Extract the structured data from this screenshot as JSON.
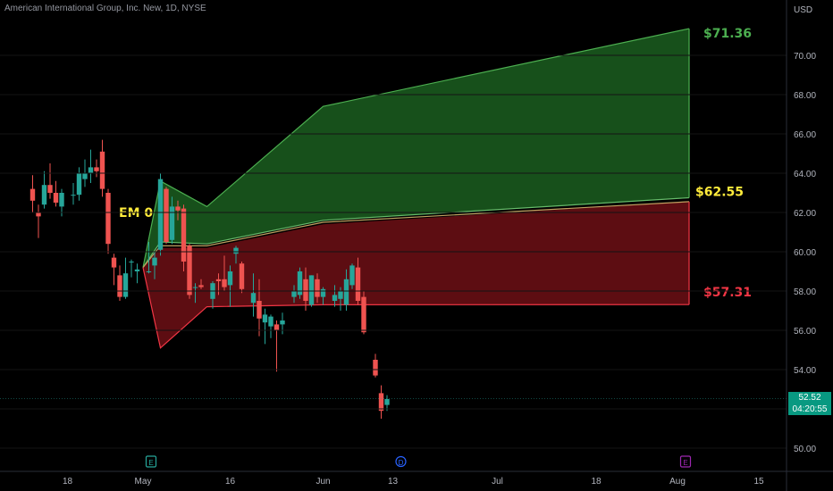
{
  "header": {
    "symbol_title": "American International Group, Inc. New, 1D, NYSE"
  },
  "axis": {
    "currency": "USD"
  },
  "last_price": {
    "price": "52.52",
    "countdown": "04:20:55"
  },
  "chart_data": {
    "type": "candlestick",
    "title": "American International Group, Inc. New, 1D, NYSE",
    "ylim": [
      49.0,
      73.0
    ],
    "y_ticks": [
      50.0,
      52.0,
      54.0,
      56.0,
      58.0,
      60.0,
      62.0,
      64.0,
      66.0,
      68.0,
      70.0
    ],
    "y_tick_labels": [
      "50.00",
      "52.00",
      "54.00",
      "56.00",
      "58.00",
      "60.00",
      "62.00",
      "64.00",
      "66.00",
      "68.00",
      "70.00"
    ],
    "x_ticks": [
      {
        "label": "18",
        "day": -13
      },
      {
        "label": "May",
        "day": 0
      },
      {
        "label": "16",
        "day": 15
      },
      {
        "label": "Jun",
        "day": 31
      },
      {
        "label": "13",
        "day": 43
      },
      {
        "label": "Jul",
        "day": 61
      },
      {
        "label": "18",
        "day": 78
      },
      {
        "label": "Aug",
        "day": 92
      },
      {
        "label": "15",
        "day": 106
      }
    ],
    "xlim_days": [
      -20,
      113
    ],
    "candles": [
      {
        "day": -19,
        "o": 63.2,
        "h": 63.9,
        "l": 62.0,
        "c": 62.6
      },
      {
        "day": -18,
        "o": 62.0,
        "h": 62.4,
        "l": 60.7,
        "c": 61.8
      },
      {
        "day": -17,
        "o": 62.4,
        "h": 64.1,
        "l": 62.2,
        "c": 63.4
      },
      {
        "day": -16,
        "o": 63.4,
        "h": 64.5,
        "l": 62.7,
        "c": 63.0
      },
      {
        "day": -15,
        "o": 63.0,
        "h": 63.6,
        "l": 62.3,
        "c": 62.5
      },
      {
        "day": -14,
        "o": 62.3,
        "h": 63.2,
        "l": 61.8,
        "c": 63.0
      },
      {
        "day": -12,
        "o": 62.9,
        "h": 63.5,
        "l": 62.4,
        "c": 62.9
      },
      {
        "day": -11,
        "o": 62.9,
        "h": 64.3,
        "l": 62.6,
        "c": 64.0
      },
      {
        "day": -10,
        "o": 63.7,
        "h": 64.7,
        "l": 63.3,
        "c": 64.0
      },
      {
        "day": -9,
        "o": 64.0,
        "h": 65.2,
        "l": 63.5,
        "c": 64.3
      },
      {
        "day": -8,
        "o": 64.3,
        "h": 64.7,
        "l": 63.8,
        "c": 64.1
      },
      {
        "day": -7,
        "o": 65.1,
        "h": 65.7,
        "l": 62.8,
        "c": 63.2
      },
      {
        "day": -6,
        "o": 63.0,
        "h": 63.2,
        "l": 59.9,
        "c": 60.4
      },
      {
        "day": -5,
        "o": 59.7,
        "h": 59.9,
        "l": 58.3,
        "c": 59.2
      },
      {
        "day": -4,
        "o": 58.8,
        "h": 59.3,
        "l": 57.5,
        "c": 57.7
      },
      {
        "day": -3,
        "o": 57.7,
        "h": 59.7,
        "l": 57.6,
        "c": 58.9
      },
      {
        "day": -2,
        "o": 59.5,
        "h": 59.6,
        "l": 58.7,
        "c": 59.5
      },
      {
        "day": -1,
        "o": 59.0,
        "h": 59.4,
        "l": 58.4,
        "c": 59.1
      },
      {
        "day": 1,
        "o": 59.0,
        "h": 60.5,
        "l": 58.9,
        "c": 59.0
      },
      {
        "day": 2,
        "o": 59.3,
        "h": 60.0,
        "l": 58.6,
        "c": 59.7
      },
      {
        "day": 3,
        "o": 60.1,
        "h": 64.0,
        "l": 59.8,
        "c": 63.7
      },
      {
        "day": 4,
        "o": 63.2,
        "h": 63.3,
        "l": 60.4,
        "c": 60.5
      },
      {
        "day": 5,
        "o": 60.6,
        "h": 62.8,
        "l": 60.4,
        "c": 62.3
      },
      {
        "day": 6,
        "o": 62.3,
        "h": 62.6,
        "l": 61.6,
        "c": 62.1
      },
      {
        "day": 7,
        "o": 62.2,
        "h": 62.4,
        "l": 59.0,
        "c": 59.5
      },
      {
        "day": 8,
        "o": 60.3,
        "h": 60.4,
        "l": 57.6,
        "c": 57.8
      },
      {
        "day": 9,
        "o": 58.2,
        "h": 58.4,
        "l": 57.4,
        "c": 58.2
      },
      {
        "day": 10,
        "o": 58.3,
        "h": 58.6,
        "l": 58.1,
        "c": 58.2
      },
      {
        "day": 12,
        "o": 57.6,
        "h": 58.5,
        "l": 57.1,
        "c": 58.4
      },
      {
        "day": 13,
        "o": 58.6,
        "h": 58.9,
        "l": 57.8,
        "c": 58.5
      },
      {
        "day": 14,
        "o": 58.6,
        "h": 59.8,
        "l": 58.0,
        "c": 58.2
      },
      {
        "day": 15,
        "o": 58.3,
        "h": 59.3,
        "l": 57.2,
        "c": 59.0
      },
      {
        "day": 16,
        "o": 59.9,
        "h": 60.3,
        "l": 59.4,
        "c": 60.2
      },
      {
        "day": 17,
        "o": 59.4,
        "h": 59.5,
        "l": 57.9,
        "c": 58.1
      },
      {
        "day": 19,
        "o": 57.4,
        "h": 58.9,
        "l": 56.7,
        "c": 57.9
      },
      {
        "day": 20,
        "o": 57.5,
        "h": 58.6,
        "l": 55.7,
        "c": 56.6
      },
      {
        "day": 21,
        "o": 56.4,
        "h": 57.1,
        "l": 55.3,
        "c": 56.8
      },
      {
        "day": 22,
        "o": 56.2,
        "h": 56.8,
        "l": 55.6,
        "c": 56.7
      },
      {
        "day": 23,
        "o": 56.3,
        "h": 56.5,
        "l": 53.9,
        "c": 56.0
      },
      {
        "day": 24,
        "o": 56.3,
        "h": 56.9,
        "l": 55.8,
        "c": 56.5
      },
      {
        "day": 26,
        "o": 57.7,
        "h": 58.3,
        "l": 57.4,
        "c": 58.0
      },
      {
        "day": 27,
        "o": 57.8,
        "h": 59.2,
        "l": 57.6,
        "c": 59.0
      },
      {
        "day": 28,
        "o": 58.6,
        "h": 59.2,
        "l": 57.0,
        "c": 57.5
      },
      {
        "day": 29,
        "o": 57.3,
        "h": 58.8,
        "l": 57.2,
        "c": 58.8
      },
      {
        "day": 30,
        "o": 58.6,
        "h": 58.9,
        "l": 57.4,
        "c": 57.7
      },
      {
        "day": 31,
        "o": 57.7,
        "h": 58.2,
        "l": 57.3,
        "c": 58.1
      },
      {
        "day": 33,
        "o": 57.5,
        "h": 58.3,
        "l": 57.2,
        "c": 57.8
      },
      {
        "day": 34,
        "o": 57.6,
        "h": 58.2,
        "l": 57.0,
        "c": 58.0
      },
      {
        "day": 35,
        "o": 57.3,
        "h": 59.1,
        "l": 57.0,
        "c": 58.6
      },
      {
        "day": 36,
        "o": 58.3,
        "h": 59.4,
        "l": 58.1,
        "c": 59.3
      },
      {
        "day": 37,
        "o": 59.2,
        "h": 59.7,
        "l": 57.3,
        "c": 57.5
      },
      {
        "day": 38,
        "o": 57.7,
        "h": 58.0,
        "l": 55.8,
        "c": 55.9
      },
      {
        "day": 40,
        "o": 54.5,
        "h": 54.8,
        "l": 53.6,
        "c": 53.7
      },
      {
        "day": 41,
        "o": 52.8,
        "h": 53.2,
        "l": 51.5,
        "c": 51.9
      },
      {
        "day": 42,
        "o": 52.2,
        "h": 52.7,
        "l": 51.9,
        "c": 52.5
      }
    ],
    "expected_move_bands": {
      "label": "EM 0",
      "days": [
        0,
        3,
        11,
        31,
        94
      ],
      "upper_outer": [
        59.2,
        63.6,
        62.3,
        67.4,
        71.36
      ],
      "upper_inner": [
        59.2,
        60.5,
        60.4,
        61.6,
        62.75
      ],
      "center": [
        59.2,
        60.3,
        60.3,
        61.5,
        62.55
      ],
      "lower_inner": [
        59.2,
        60.2,
        60.2,
        61.4,
        62.55
      ],
      "lower_outer": [
        59.2,
        55.1,
        57.2,
        57.3,
        57.31
      ],
      "labels": {
        "upper": "$71.36",
        "center": "$62.55",
        "lower": "$57.31"
      }
    },
    "event_markers": [
      {
        "day": 0,
        "letter": "E",
        "color": "#26a69a"
      },
      {
        "day": 43,
        "letter": "D",
        "color": "#2962ff"
      },
      {
        "day": 92,
        "letter": "E",
        "color": "#9c27b0"
      }
    ],
    "last_price_value": 52.52,
    "colors": {
      "up": "#26a69a",
      "down": "#ef5350",
      "green_band": "#1b5e20",
      "red_band": "#6d0f15",
      "upper_label": "#4caf50",
      "center_label": "#ffeb3b",
      "lower_label": "#f23645",
      "axis_text": "#b2b5be"
    }
  }
}
